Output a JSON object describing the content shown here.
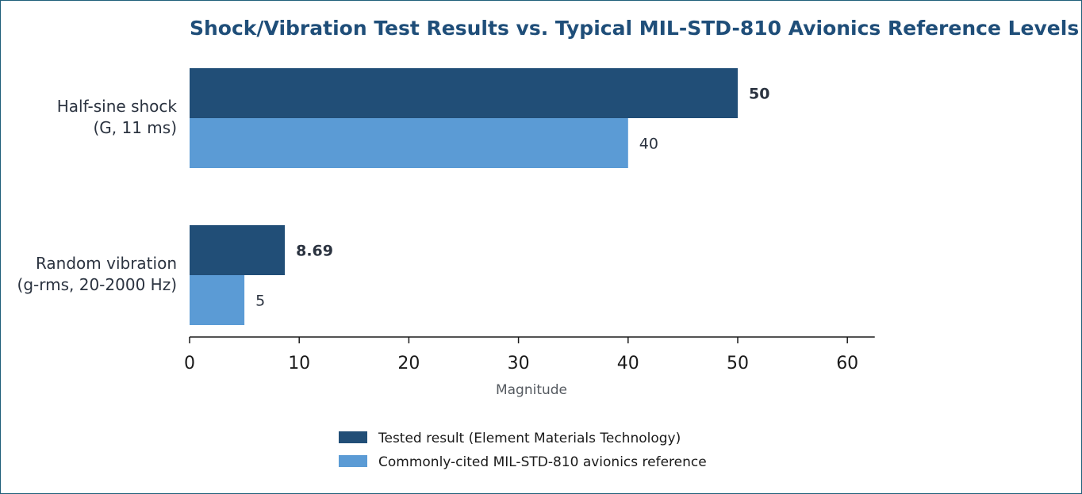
{
  "chart_data": {
    "type": "bar",
    "orientation": "horizontal",
    "title": "Shock/Vibration Test Results vs. Typical MIL-STD-810 Avionics Reference Levels",
    "xlabel": "Magnitude",
    "categories": [
      [
        "Half-sine shock",
        "(G, 11 ms)"
      ],
      [
        "Random vibration",
        "(g-rms, 20-2000 Hz)"
      ]
    ],
    "series": [
      {
        "name": "Tested result (Element Materials Technology)",
        "values": [
          50,
          8.69
        ],
        "labels": [
          "50",
          "8.69"
        ],
        "color": "#214e77"
      },
      {
        "name": "Commonly-cited MIL-STD-810 avionics reference",
        "values": [
          40,
          5
        ],
        "labels": [
          "40",
          "5"
        ],
        "color": "#5b9bd5"
      }
    ],
    "xlim": [
      0,
      62.5
    ],
    "xticks": [
      0,
      10,
      20,
      30,
      40,
      50,
      60
    ],
    "grid": false,
    "legend_position": "bottom-center"
  }
}
